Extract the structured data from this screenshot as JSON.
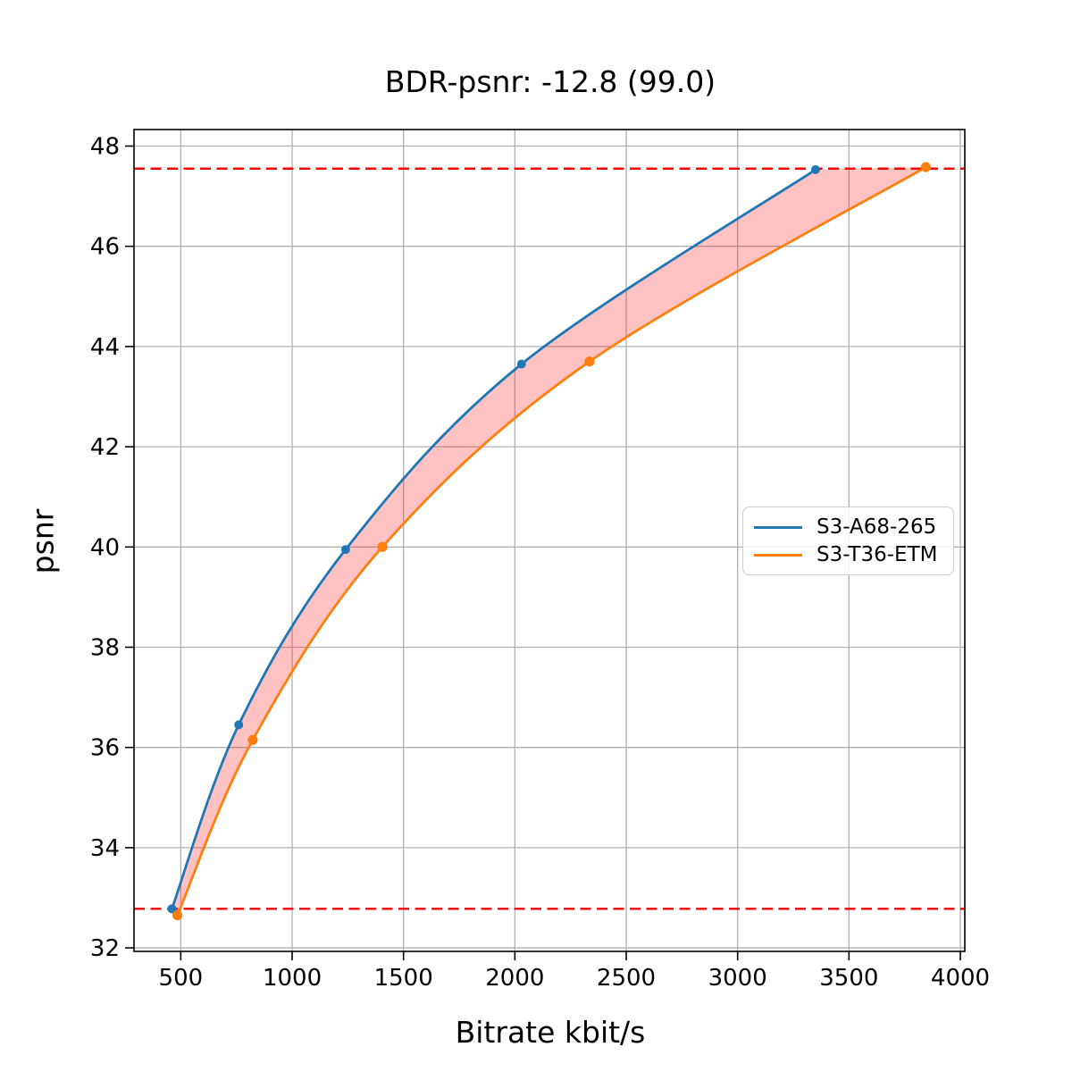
{
  "title": "BDR-psnr: -12.8 (99.0)",
  "chart_data": {
    "type": "line",
    "title": "BDR-psnr: -12.8 (99.0)",
    "xlabel": "Bitrate kbit/s",
    "ylabel": "psnr",
    "xlim": [
      290,
      4020
    ],
    "ylim": [
      31.93,
      48.33
    ],
    "x_ticks": [
      500,
      1000,
      1500,
      2000,
      2500,
      3000,
      3500,
      4000
    ],
    "y_ticks": [
      32,
      34,
      36,
      38,
      40,
      42,
      44,
      46,
      48
    ],
    "grid": true,
    "grid_color": "#b0b0b0",
    "spine_color": "#000000",
    "legend_position": "center-right",
    "series": [
      {
        "name": "S3-A68-265",
        "color": "#1f77b4",
        "marker": "circle",
        "marker_radius": 5,
        "points": [
          [
            460,
            32.78
          ],
          [
            760,
            36.45
          ],
          [
            1240,
            39.95
          ],
          [
            2030,
            43.65
          ],
          [
            3350,
            47.53
          ]
        ]
      },
      {
        "name": "S3-T36-ETM",
        "color": "#ff7f0e",
        "marker": "circle",
        "marker_radius": 5.6,
        "points": [
          [
            485,
            32.65
          ],
          [
            823,
            36.15
          ],
          [
            1405,
            40.0
          ],
          [
            2335,
            43.7
          ],
          [
            3845,
            47.58
          ]
        ]
      }
    ],
    "reference_lines": [
      {
        "y": 47.55,
        "color": "#ff0000",
        "style": "dashed"
      },
      {
        "y": 32.78,
        "color": "#ff0000",
        "style": "dashed"
      }
    ],
    "fill_between": {
      "between": [
        "S3-A68-265",
        "S3-T36-ETM"
      ],
      "color": "rgba(255, 10, 10, 0.25)"
    }
  }
}
